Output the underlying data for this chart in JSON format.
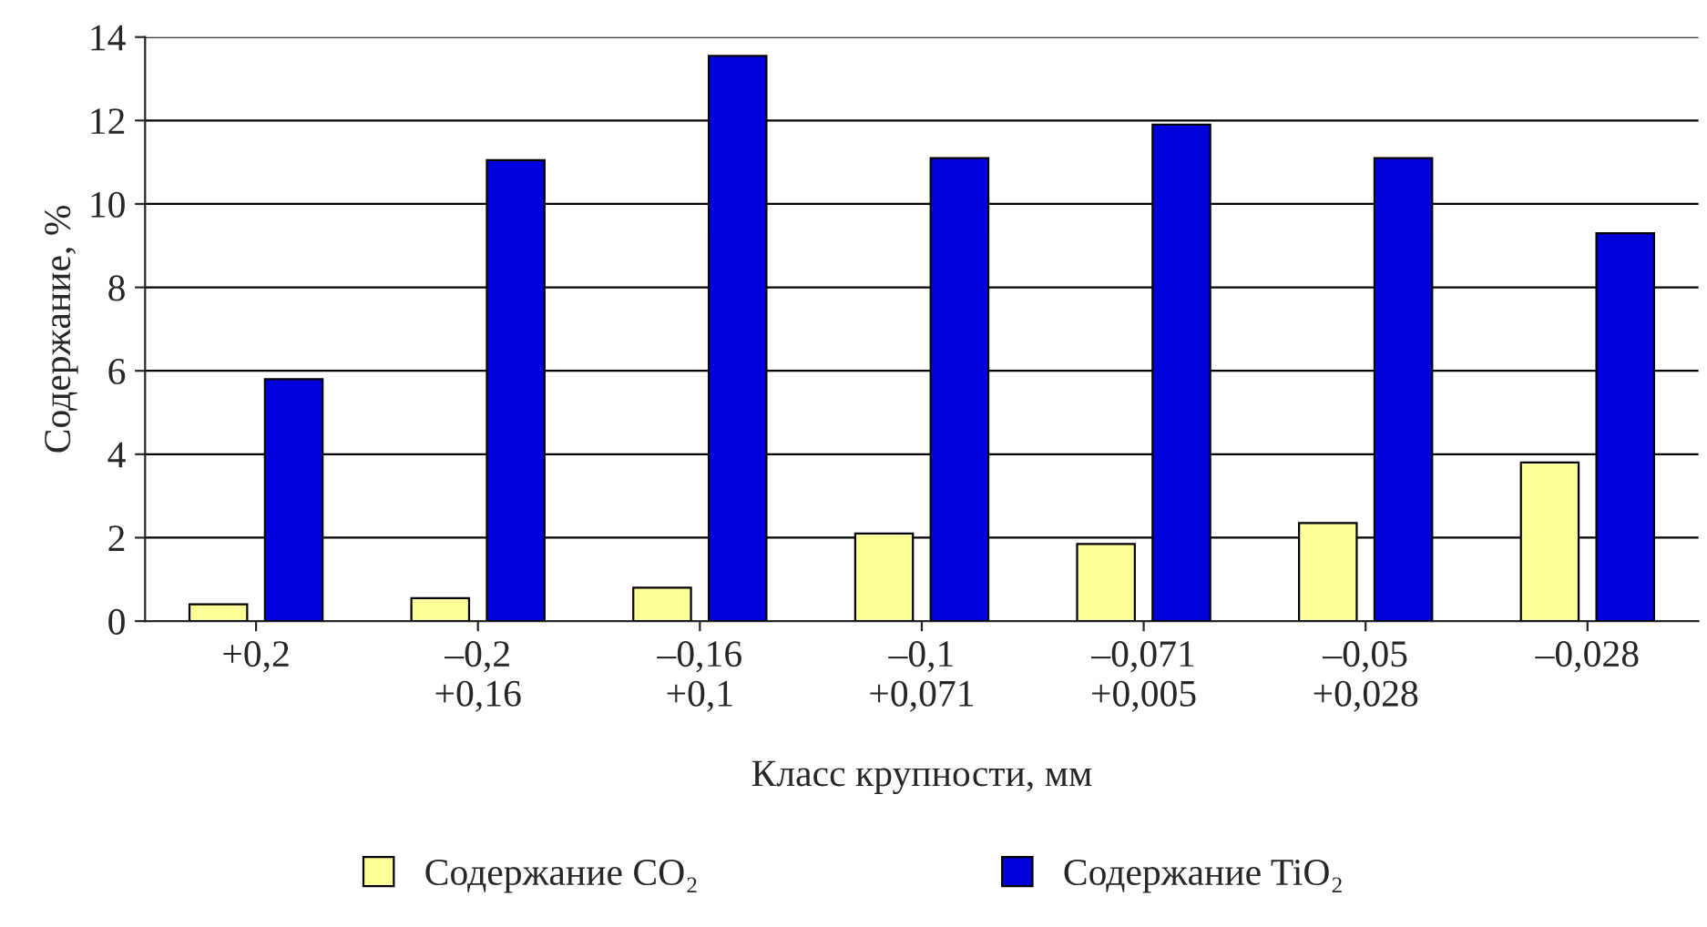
{
  "chart_data": {
    "type": "bar",
    "xlabel": "Класс крупности, мм",
    "ylabel": "Содержание, %",
    "categories": [
      "+0,2",
      "–0,2\n+0,16",
      "–0,16\n+0,1",
      "–0,1\n+0,071",
      "–0,071\n+0,005",
      "–0,05\n+0,028",
      "–0,028"
    ],
    "series": [
      {
        "name": "Содержание CO₂",
        "color": "#ffff99",
        "values": [
          0.4,
          0.55,
          0.8,
          2.1,
          1.85,
          2.35,
          3.8
        ]
      },
      {
        "name": "Содержание TiO₂",
        "color": "#0000dd",
        "values": [
          5.8,
          11.05,
          13.55,
          11.1,
          11.9,
          11.1,
          9.3
        ]
      }
    ],
    "ylim": [
      0,
      14
    ],
    "yticks": [
      0,
      2,
      4,
      6,
      8,
      10,
      12,
      14
    ],
    "grid": "y",
    "legend": "bottom"
  }
}
